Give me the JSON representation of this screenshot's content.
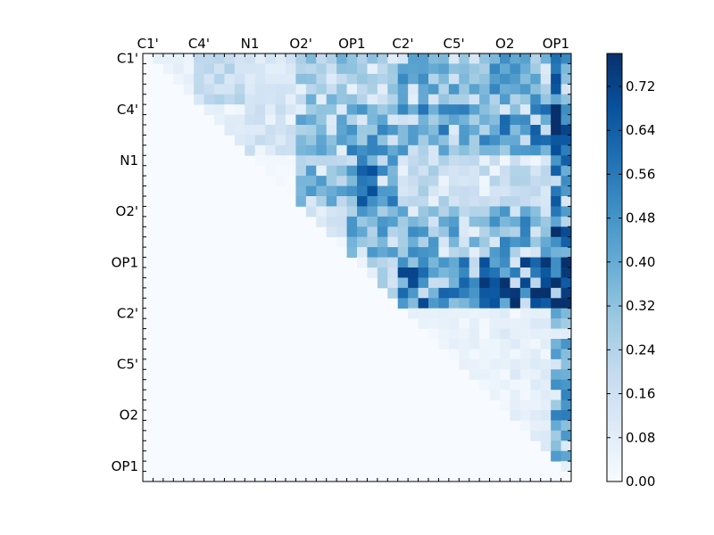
{
  "chart_data": {
    "type": "heatmap",
    "title": "",
    "xlabel": "",
    "ylabel": "",
    "n": 42,
    "x_tick_labels": [
      "C1'",
      "C4'",
      "N1",
      "O2'",
      "OP1",
      "C2'",
      "C5'",
      "O2",
      "OP1"
    ],
    "y_tick_labels": [
      "C1'",
      "C4'",
      "N1",
      "O2'",
      "OP1",
      "C2'",
      "C5'",
      "O2",
      "OP1"
    ],
    "tick_positions": [
      0,
      5,
      10,
      15,
      20,
      25,
      30,
      35,
      40
    ],
    "upper_triangle_only": true,
    "value_range": [
      0.0,
      0.78
    ],
    "colormap": "Blues",
    "colormap_stops": [
      "#f7fbff",
      "#deebf7",
      "#c6dbef",
      "#9ecae1",
      "#6baed6",
      "#4292c6",
      "#2171b5",
      "#08519c",
      "#08306b"
    ],
    "colorbar": {
      "ticks": [
        "0.00",
        "0.08",
        "0.16",
        "0.24",
        "0.32",
        "0.40",
        "0.48",
        "0.56",
        "0.64",
        "0.72"
      ],
      "min": 0.0,
      "max": 0.78
    },
    "grid": false,
    "legend": "none",
    "matrix_row_blocks": [
      {
        "rows": [
          0,
          4
        ],
        "block_means": [
          0.06,
          0.18,
          0.12,
          0.28,
          0.26,
          0.38,
          0.38,
          0.4,
          0.52
        ]
      },
      {
        "rows": [
          5,
          9
        ],
        "block_means": [
          0.0,
          0.08,
          0.14,
          0.32,
          0.4,
          0.42,
          0.4,
          0.46,
          0.64
        ]
      },
      {
        "rows": [
          10,
          14
        ],
        "block_means": [
          0.0,
          0.0,
          0.02,
          0.34,
          0.5,
          0.2,
          0.18,
          0.18,
          0.5
        ]
      },
      {
        "rows": [
          15,
          19
        ],
        "block_means": [
          0.0,
          0.0,
          0.0,
          0.12,
          0.36,
          0.38,
          0.36,
          0.4,
          0.58
        ]
      },
      {
        "rows": [
          20,
          24
        ],
        "block_means": [
          0.0,
          0.0,
          0.0,
          0.0,
          0.2,
          0.52,
          0.54,
          0.6,
          0.66
        ]
      },
      {
        "rows": [
          25,
          29
        ],
        "block_means": [
          0.0,
          0.0,
          0.0,
          0.0,
          0.0,
          0.06,
          0.06,
          0.08,
          0.36
        ]
      },
      {
        "rows": [
          30,
          34
        ],
        "block_means": [
          0.0,
          0.0,
          0.0,
          0.0,
          0.0,
          0.0,
          0.05,
          0.08,
          0.4
        ]
      },
      {
        "rows": [
          35,
          39
        ],
        "block_means": [
          0.0,
          0.0,
          0.0,
          0.0,
          0.0,
          0.0,
          0.0,
          0.08,
          0.4
        ]
      },
      {
        "rows": [
          40,
          41
        ],
        "block_means": [
          0.0,
          0.0,
          0.0,
          0.0,
          0.0,
          0.0,
          0.0,
          0.0,
          0.1
        ]
      }
    ]
  }
}
